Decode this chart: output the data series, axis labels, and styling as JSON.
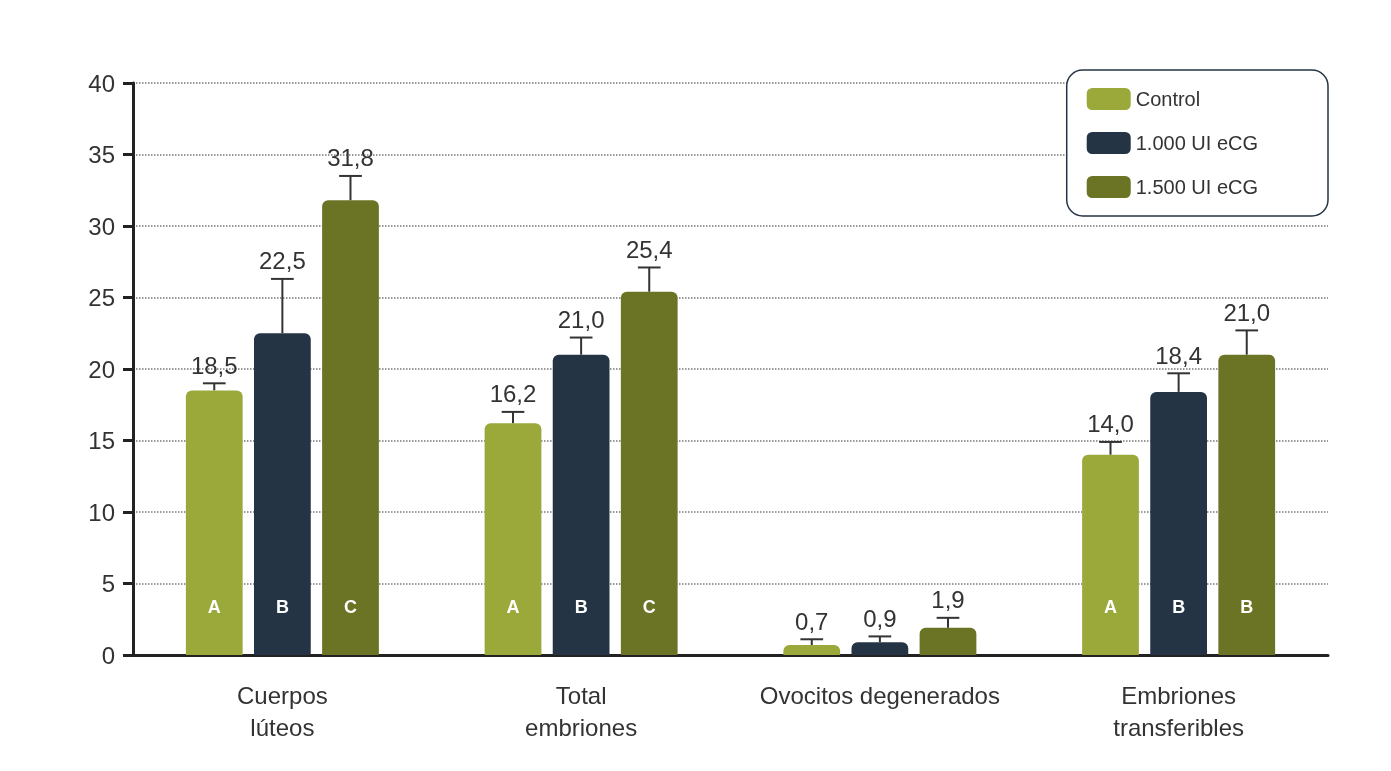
{
  "chart_data": {
    "type": "bar",
    "categories": [
      "Cuerpos\nlúteos",
      "Total\nembriones",
      "Ovocitos degenerados",
      "Embriones\ntransferibles"
    ],
    "series": [
      {
        "name": "Control",
        "color": "#9aa93a",
        "values": [
          18.5,
          16.2,
          0.7,
          14.0
        ],
        "value_labels": [
          "18,5",
          "16,2",
          "0,7",
          "14,0"
        ],
        "errors": [
          [
            18.5,
            19.0
          ],
          [
            16.2,
            17.0
          ],
          [
            0.7,
            1.1
          ],
          [
            14.0,
            14.9
          ]
        ]
      },
      {
        "name": "1.000 UI eCG",
        "color": "#253444",
        "values": [
          22.5,
          21.0,
          0.9,
          18.4
        ],
        "value_labels": [
          "22,5",
          "21,0",
          "0,9",
          "18,4"
        ],
        "errors": [
          [
            22.5,
            26.3
          ],
          [
            21.0,
            22.2
          ],
          [
            0.9,
            1.3
          ],
          [
            18.4,
            19.7
          ]
        ]
      },
      {
        "name": "1.500 UI eCG",
        "color": "#6b7424",
        "values": [
          31.8,
          25.4,
          1.9,
          21.0
        ],
        "value_labels": [
          "31,8",
          "25,4",
          "1,9",
          "21,0"
        ],
        "errors": [
          [
            31.8,
            33.5
          ],
          [
            25.4,
            27.1
          ],
          [
            1.9,
            2.6
          ],
          [
            21.0,
            22.7
          ]
        ]
      }
    ],
    "annotations": [
      "A",
      "B",
      "C",
      "A",
      "B",
      "C",
      "A",
      "B",
      "B"
    ],
    "ylim": [
      0,
      40
    ],
    "yticks": [
      0,
      5,
      10,
      15,
      20,
      25,
      30,
      35,
      40
    ],
    "grid": "y",
    "legend": "top right"
  }
}
